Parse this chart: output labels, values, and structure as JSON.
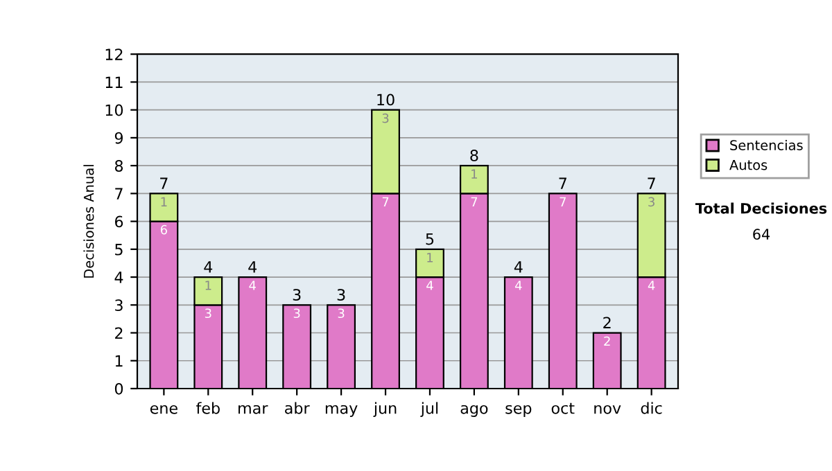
{
  "chart_data": {
    "type": "bar",
    "stacked": true,
    "ylabel": "Decisiones Anual",
    "categories": [
      "ene",
      "feb",
      "mar",
      "abr",
      "may",
      "jun",
      "jul",
      "ago",
      "sep",
      "oct",
      "nov",
      "dic"
    ],
    "series": [
      {
        "name": "Sentencias",
        "color": "#e07ac8",
        "values": [
          6,
          3,
          4,
          3,
          3,
          7,
          4,
          7,
          4,
          7,
          2,
          4
        ]
      },
      {
        "name": "Autos",
        "color": "#cdec8c",
        "values": [
          1,
          1,
          null,
          null,
          null,
          3,
          1,
          1,
          null,
          null,
          null,
          3
        ]
      }
    ],
    "totals": [
      "7",
      "4",
      "4",
      "3",
      "3",
      "10",
      "5",
      "8",
      "4",
      "7",
      "2",
      "7"
    ],
    "data_labels": true,
    "ylim": [
      0,
      12
    ],
    "yticks": [
      0,
      1,
      2,
      3,
      4,
      5,
      6,
      7,
      8,
      9,
      10,
      11,
      12
    ],
    "grid": "y",
    "legend": "right",
    "annotations": [
      "Total Decisiones",
      "64"
    ]
  }
}
